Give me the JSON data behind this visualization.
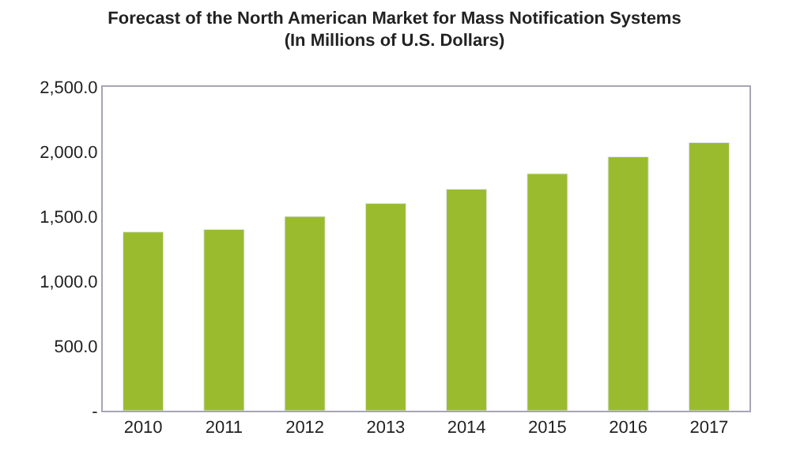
{
  "chart_data": {
    "type": "bar",
    "title": "Forecast of the North American Market for Mass Notification Systems\n(In Millions of U.S. Dollars)",
    "categories": [
      "2010",
      "2011",
      "2012",
      "2013",
      "2014",
      "2015",
      "2016",
      "2017"
    ],
    "values": [
      1380,
      1400,
      1500,
      1600,
      1710,
      1830,
      1960,
      2070
    ],
    "color": "#9bbb2f",
    "ylim": [
      0,
      2500
    ],
    "yticks": [
      {
        "value": 0,
        "label": "-"
      },
      {
        "value": 500,
        "label": "500.0"
      },
      {
        "value": 1000,
        "label": "1,000.0"
      },
      {
        "value": 1500,
        "label": "1,500.0"
      },
      {
        "value": 2000,
        "label": "2,000.0"
      },
      {
        "value": 2500,
        "label": "2,500.0"
      }
    ],
    "grid": false,
    "legend": false
  }
}
